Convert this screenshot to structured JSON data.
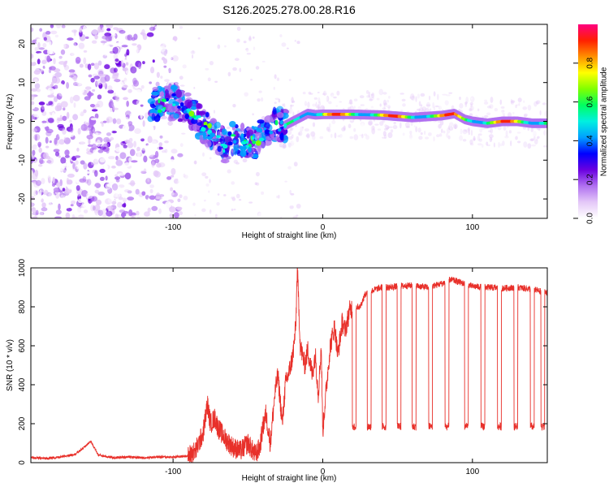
{
  "title": "S126.2025.278.00.28.R16",
  "chart_data": [
    {
      "type": "heatmap",
      "title": "S126.2025.278.00.28.R16",
      "xlabel": "Height of straight line (km)",
      "ylabel": "Frequency (Hz)",
      "xlim": [
        -195,
        150
      ],
      "ylim": [
        -25,
        25
      ],
      "x_ticks": [
        -100,
        0,
        100
      ],
      "x_tick_labels": [
        "-100",
        "0",
        "100"
      ],
      "y_ticks": [
        -20,
        -10,
        0,
        10,
        20
      ],
      "y_tick_labels": [
        "-20",
        "-10",
        "0",
        "10",
        "20"
      ],
      "colorbar": {
        "label": "Normalized spectral amplitude",
        "range": [
          0,
          1
        ],
        "ticks": [
          0.0,
          0.2,
          0.4,
          0.6,
          0.8
        ],
        "tick_labels": [
          "0.0",
          "0.2",
          "0.4",
          "0.6",
          "0.8"
        ],
        "colors": [
          "#ffffff",
          "#e4c8f8",
          "#b070f0",
          "#6a00e0",
          "#0000ff",
          "#00a0ff",
          "#00f0e0",
          "#00ff60",
          "#80ff00",
          "#ffff00",
          "#ff9000",
          "#ff2000",
          "#ff0080"
        ]
      },
      "ridge_frequency": {
        "x": [
          -110,
          -100,
          -90,
          -80,
          -75,
          -70,
          -65,
          -60,
          -55,
          -50,
          -45,
          -40,
          -35,
          -30,
          -25,
          -20,
          -15,
          -10,
          -5,
          0,
          20,
          40,
          60,
          80,
          88,
          95,
          100,
          110,
          120,
          130,
          140,
          150
        ],
        "y": [
          4.5,
          5,
          3,
          -1,
          -3,
          -5,
          -6.5,
          -4,
          -5,
          -6,
          -5,
          -3,
          -1.5,
          -1,
          -1,
          0,
          1,
          2,
          1.7,
          1.8,
          1.8,
          1.6,
          1.0,
          1.5,
          2,
          0.5,
          0,
          -0.5,
          0,
          0,
          -0.5,
          -0.5
        ]
      }
    },
    {
      "type": "line",
      "xlabel": "Height of straight line (km)",
      "ylabel": "SNR (10 * v/v)",
      "xlim": [
        -195,
        150
      ],
      "ylim": [
        0,
        1000
      ],
      "x_ticks": [
        -100,
        0,
        100
      ],
      "x_tick_labels": [
        "-100",
        "0",
        "100"
      ],
      "y_ticks": [
        0,
        200,
        400,
        600,
        800,
        1000
      ],
      "y_tick_labels": [
        "0",
        "200",
        "400",
        "600",
        "800",
        "1000"
      ],
      "series": [
        {
          "name": "SNR",
          "color": "#e8302a",
          "x": [
            -195,
            -185,
            -175,
            -165,
            -160,
            -155,
            -150,
            -140,
            -130,
            -120,
            -110,
            -100,
            -90,
            -85,
            -80,
            -77,
            -75,
            -72,
            -70,
            -65,
            -60,
            -55,
            -50,
            -45,
            -42,
            -40,
            -38,
            -35,
            -32,
            -30,
            -27,
            -25,
            -22,
            -20,
            -18,
            -17,
            -15,
            -12,
            -10,
            -7,
            -5,
            -3,
            -1,
            0,
            2,
            5,
            8,
            10,
            13,
            15,
            18,
            20,
            25,
            28,
            30,
            35,
            40,
            45,
            50,
            60,
            70,
            80,
            85,
            90,
            100,
            110,
            120,
            130,
            140,
            145,
            150
          ],
          "y": [
            25,
            22,
            28,
            45,
            75,
            110,
            40,
            25,
            30,
            25,
            30,
            28,
            35,
            60,
            150,
            300,
            200,
            230,
            180,
            120,
            80,
            60,
            100,
            40,
            80,
            180,
            250,
            100,
            350,
            450,
            200,
            400,
            480,
            550,
            700,
            1000,
            600,
            500,
            580,
            450,
            560,
            350,
            600,
            160,
            350,
            600,
            700,
            550,
            720,
            680,
            780,
            800,
            800,
            860,
            870,
            890,
            900,
            900,
            905,
            910,
            900,
            920,
            940,
            930,
            905,
            900,
            895,
            900,
            890,
            880,
            870
          ]
        }
      ],
      "dip_centers": [
        21,
        31,
        41,
        51,
        61,
        72,
        83,
        96,
        107,
        118,
        129,
        140,
        147
      ]
    }
  ]
}
